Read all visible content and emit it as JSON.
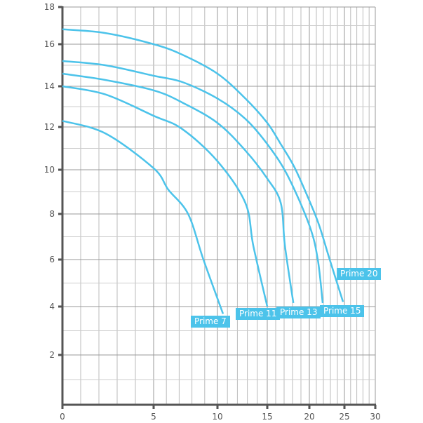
{
  "chart_data": {
    "type": "line",
    "title": "",
    "xlabel": "",
    "ylabel": "",
    "xlim": [
      0,
      30
    ],
    "ylim": [
      0,
      18
    ],
    "x_ticks": [
      0,
      5,
      10,
      15,
      20,
      25,
      30
    ],
    "y_ticks": [
      2,
      4,
      6,
      8,
      10,
      12,
      14,
      16,
      18
    ],
    "x_ticks_labels": [
      "0",
      "5",
      "10",
      "15",
      "20",
      "25",
      "30"
    ],
    "y_ticks_labels": [
      "2",
      "4",
      "6",
      "8",
      "10",
      "12",
      "14",
      "16",
      "18"
    ],
    "grid": true,
    "line_color": "#4cc3ea",
    "series": [
      {
        "name": "Prime 20",
        "points": [
          [
            0,
            16.8
          ],
          [
            2.35,
            16.6
          ],
          [
            5,
            16
          ],
          [
            7.25,
            15.5
          ],
          [
            10,
            14.6
          ],
          [
            12.8,
            13.4
          ],
          [
            15,
            12.2
          ],
          [
            16.6,
            11.2
          ],
          [
            18.25,
            10.1
          ],
          [
            20,
            8.6
          ],
          [
            21.4,
            7.5
          ],
          [
            22.9,
            6
          ],
          [
            24.8,
            4.2
          ]
        ]
      },
      {
        "name": "Prime 15",
        "points": [
          [
            0,
            15.2
          ],
          [
            2.35,
            15
          ],
          [
            5,
            14.5
          ],
          [
            7.25,
            14.2
          ],
          [
            10,
            13.4
          ],
          [
            12.8,
            12.4
          ],
          [
            15,
            11.2
          ],
          [
            17.4,
            9.75
          ],
          [
            20,
            7.5
          ],
          [
            21.2,
            6
          ],
          [
            21.9,
            4.15
          ]
        ]
      },
      {
        "name": "Prime 13",
        "points": [
          [
            0,
            14.6
          ],
          [
            2.35,
            14.3
          ],
          [
            5,
            13.8
          ],
          [
            7.25,
            13.2
          ],
          [
            10,
            12.2
          ],
          [
            12.8,
            10.9
          ],
          [
            15,
            9.6
          ],
          [
            16.6,
            8.5
          ],
          [
            17.1,
            6.6
          ],
          [
            18.1,
            4.15
          ]
        ]
      },
      {
        "name": "Prime 11",
        "points": [
          [
            0,
            14
          ],
          [
            2.35,
            13.6
          ],
          [
            5,
            12.55
          ],
          [
            7.25,
            11.9
          ],
          [
            10,
            10.4
          ],
          [
            12.8,
            8.5
          ],
          [
            13.6,
            6.6
          ],
          [
            15,
            4
          ]
        ]
      },
      {
        "name": "Prime 7",
        "points": [
          [
            0,
            12.3
          ],
          [
            2.35,
            11.7
          ],
          [
            5,
            10.07
          ],
          [
            6.15,
            9.1
          ],
          [
            7.7,
            8
          ],
          [
            8.9,
            6
          ],
          [
            10.56,
            3.7
          ]
        ]
      }
    ]
  }
}
